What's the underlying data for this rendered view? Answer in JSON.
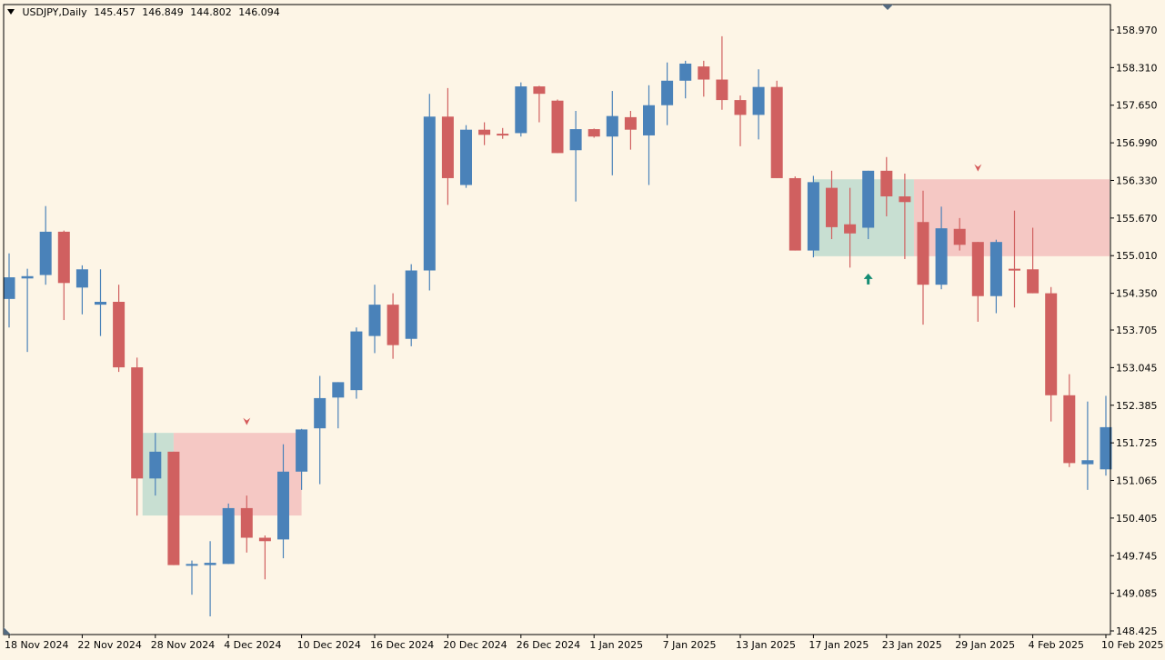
{
  "header": {
    "symbol": "USDJPY,Daily",
    "open": "145.457",
    "high": "146.849",
    "low": "144.802",
    "close": "146.094"
  },
  "colors": {
    "background": "#fdf5e6",
    "bull": "#4a82b9",
    "bear": "#d06060",
    "supply_zone": "#f5c8c4",
    "demand_zone": "#c8dfd2",
    "up_arrow": "#138c73",
    "down_marker": "#d55a5a",
    "axis": "#000000"
  },
  "chart_data": {
    "type": "candlestick",
    "y_axis": {
      "min": 148.425,
      "max": 159.3,
      "tick_labels": [
        "158.970",
        "158.310",
        "157.650",
        "156.990",
        "156.330",
        "155.670",
        "155.010",
        "154.350",
        "153.705",
        "153.045",
        "152.385",
        "151.725",
        "151.065",
        "150.405",
        "149.745",
        "149.085",
        "148.425"
      ]
    },
    "x_axis": {
      "tick_labels": [
        {
          "label": "18 Nov 2024",
          "index": 0
        },
        {
          "label": "22 Nov 2024",
          "index": 4
        },
        {
          "label": "28 Nov 2024",
          "index": 8
        },
        {
          "label": "4 Dec 2024",
          "index": 12
        },
        {
          "label": "10 Dec 2024",
          "index": 16
        },
        {
          "label": "16 Dec 2024",
          "index": 20
        },
        {
          "label": "20 Dec 2024",
          "index": 24
        },
        {
          "label": "26 Dec 2024",
          "index": 28
        },
        {
          "label": "1 Jan 2025",
          "index": 32
        },
        {
          "label": "7 Jan 2025",
          "index": 36
        },
        {
          "label": "13 Jan 2025",
          "index": 40
        },
        {
          "label": "17 Jan 2025",
          "index": 44
        },
        {
          "label": "23 Jan 2025",
          "index": 48
        },
        {
          "label": "29 Jan 2025",
          "index": 52
        },
        {
          "label": "4 Feb 2025",
          "index": 56
        },
        {
          "label": "10 Feb 2025",
          "index": 60
        }
      ]
    },
    "candles": [
      {
        "o": 154.25,
        "h": 155.05,
        "l": 153.75,
        "c": 154.63
      },
      {
        "o": 154.61,
        "h": 154.78,
        "l": 153.32,
        "c": 154.65
      },
      {
        "o": 154.67,
        "h": 155.88,
        "l": 154.5,
        "c": 155.43
      },
      {
        "o": 155.43,
        "h": 155.45,
        "l": 153.88,
        "c": 154.53
      },
      {
        "o": 154.45,
        "h": 154.84,
        "l": 153.98,
        "c": 154.77
      },
      {
        "o": 154.15,
        "h": 154.77,
        "l": 153.6,
        "c": 154.2
      },
      {
        "o": 154.2,
        "h": 154.5,
        "l": 152.97,
        "c": 153.05
      },
      {
        "o": 153.05,
        "h": 153.22,
        "l": 150.45,
        "c": 151.1
      },
      {
        "o": 151.1,
        "h": 151.9,
        "l": 150.8,
        "c": 151.57
      },
      {
        "o": 151.57,
        "h": 151.57,
        "l": 149.65,
        "c": 149.58
      },
      {
        "o": 149.58,
        "h": 149.66,
        "l": 149.06,
        "c": 149.6
      },
      {
        "o": 149.58,
        "h": 150.0,
        "l": 148.68,
        "c": 149.62
      },
      {
        "o": 149.6,
        "h": 150.66,
        "l": 149.6,
        "c": 150.58
      },
      {
        "o": 150.58,
        "h": 150.8,
        "l": 149.8,
        "c": 150.06
      },
      {
        "o": 150.06,
        "h": 150.1,
        "l": 149.33,
        "c": 150.0
      },
      {
        "o": 150.03,
        "h": 151.7,
        "l": 149.7,
        "c": 151.22
      },
      {
        "o": 151.22,
        "h": 151.97,
        "l": 150.9,
        "c": 151.96
      },
      {
        "o": 151.98,
        "h": 152.9,
        "l": 151.0,
        "c": 152.51
      },
      {
        "o": 152.52,
        "h": 152.79,
        "l": 151.98,
        "c": 152.79
      },
      {
        "o": 152.65,
        "h": 153.75,
        "l": 152.5,
        "c": 153.68
      },
      {
        "o": 153.6,
        "h": 154.5,
        "l": 153.3,
        "c": 154.15
      },
      {
        "o": 154.15,
        "h": 154.35,
        "l": 153.2,
        "c": 153.44
      },
      {
        "o": 153.55,
        "h": 154.86,
        "l": 153.42,
        "c": 154.75
      },
      {
        "o": 154.75,
        "h": 157.85,
        "l": 154.4,
        "c": 157.45
      },
      {
        "o": 157.45,
        "h": 157.95,
        "l": 155.9,
        "c": 156.37
      },
      {
        "o": 156.25,
        "h": 157.3,
        "l": 156.2,
        "c": 157.22
      },
      {
        "o": 157.22,
        "h": 157.35,
        "l": 156.95,
        "c": 157.13
      },
      {
        "o": 157.15,
        "h": 157.25,
        "l": 157.06,
        "c": 157.13
      },
      {
        "o": 157.16,
        "h": 158.05,
        "l": 157.1,
        "c": 157.98
      },
      {
        "o": 157.98,
        "h": 157.99,
        "l": 157.35,
        "c": 157.85
      },
      {
        "o": 157.73,
        "h": 157.75,
        "l": 156.86,
        "c": 156.81
      },
      {
        "o": 156.86,
        "h": 157.55,
        "l": 155.96,
        "c": 157.23
      },
      {
        "o": 157.23,
        "h": 157.24,
        "l": 157.08,
        "c": 157.1
      },
      {
        "o": 157.1,
        "h": 157.9,
        "l": 156.42,
        "c": 157.46
      },
      {
        "o": 157.44,
        "h": 157.55,
        "l": 156.87,
        "c": 157.22
      },
      {
        "o": 157.12,
        "h": 158.0,
        "l": 156.25,
        "c": 157.65
      },
      {
        "o": 157.65,
        "h": 158.4,
        "l": 157.3,
        "c": 158.08
      },
      {
        "o": 158.08,
        "h": 158.43,
        "l": 157.77,
        "c": 158.38
      },
      {
        "o": 158.33,
        "h": 158.43,
        "l": 157.8,
        "c": 158.1
      },
      {
        "o": 158.1,
        "h": 158.86,
        "l": 157.57,
        "c": 157.74
      },
      {
        "o": 157.74,
        "h": 157.82,
        "l": 156.93,
        "c": 157.48
      },
      {
        "o": 157.48,
        "h": 158.28,
        "l": 157.05,
        "c": 157.97
      },
      {
        "o": 157.97,
        "h": 158.08,
        "l": 156.37,
        "c": 156.37
      },
      {
        "o": 156.37,
        "h": 156.4,
        "l": 155.1,
        "c": 155.1
      },
      {
        "o": 155.1,
        "h": 156.41,
        "l": 154.98,
        "c": 156.3
      },
      {
        "o": 156.2,
        "h": 156.5,
        "l": 155.3,
        "c": 155.51
      },
      {
        "o": 155.56,
        "h": 156.2,
        "l": 154.8,
        "c": 155.4
      },
      {
        "o": 155.5,
        "h": 156.5,
        "l": 155.3,
        "c": 156.5
      },
      {
        "o": 156.5,
        "h": 156.74,
        "l": 155.7,
        "c": 156.05
      },
      {
        "o": 156.05,
        "h": 156.45,
        "l": 154.95,
        "c": 155.95
      },
      {
        "o": 155.6,
        "h": 156.15,
        "l": 153.8,
        "c": 154.5
      },
      {
        "o": 154.5,
        "h": 155.87,
        "l": 154.42,
        "c": 155.49
      },
      {
        "o": 155.48,
        "h": 155.67,
        "l": 155.1,
        "c": 155.2
      },
      {
        "o": 155.25,
        "h": 155.2,
        "l": 153.85,
        "c": 154.3
      },
      {
        "o": 154.3,
        "h": 155.29,
        "l": 154.0,
        "c": 155.25
      },
      {
        "o": 154.78,
        "h": 155.8,
        "l": 154.1,
        "c": 154.76
      },
      {
        "o": 154.77,
        "h": 155.5,
        "l": 154.4,
        "c": 154.35
      },
      {
        "o": 154.35,
        "h": 154.46,
        "l": 152.1,
        "c": 152.56
      },
      {
        "o": 152.56,
        "h": 152.93,
        "l": 151.3,
        "c": 151.37
      },
      {
        "o": 151.35,
        "h": 152.45,
        "l": 150.9,
        "c": 151.42
      },
      {
        "o": 151.26,
        "h": 152.55,
        "l": 151.15,
        "c": 152.0
      }
    ],
    "zones": [
      {
        "kind": "demand",
        "from": 7.3,
        "to": 9,
        "low": 150.45,
        "high": 151.9
      },
      {
        "kind": "supply",
        "from": 9,
        "to": 16,
        "low": 150.45,
        "high": 151.9
      },
      {
        "kind": "demand",
        "from": 44,
        "to": 49.5,
        "low": 155.0,
        "high": 156.35
      },
      {
        "kind": "supply",
        "from": 49.5,
        "to": 61.35,
        "low": 155.0,
        "high": 156.35
      }
    ],
    "markers": [
      {
        "kind": "down",
        "index": 13,
        "price": 152.1
      },
      {
        "kind": "up",
        "index": 47,
        "price": 154.6
      },
      {
        "kind": "down",
        "index": 53,
        "price": 156.55
      }
    ]
  }
}
